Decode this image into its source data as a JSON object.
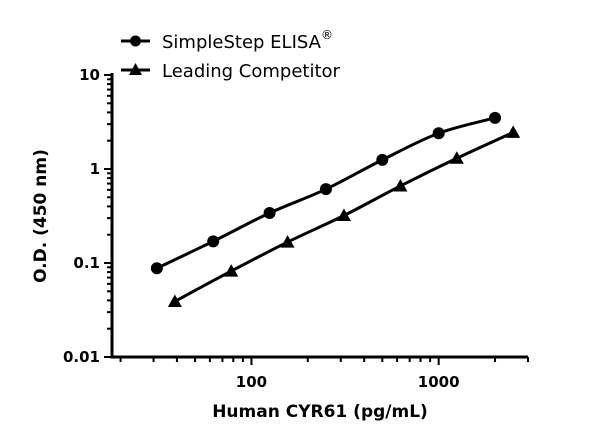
{
  "chart_data": {
    "type": "line",
    "xlabel": "Human CYR61 (pg/mL)",
    "ylabel": "O.D. (450 nm)",
    "xscale": "log",
    "yscale": "log",
    "xlim": [
      18,
      3000
    ],
    "ylim": [
      0.01,
      10
    ],
    "x_ticks": [
      {
        "v": 100,
        "label": "100"
      },
      {
        "v": 1000,
        "label": "1000"
      }
    ],
    "y_ticks": [
      {
        "v": 0.01,
        "label": "0.01"
      },
      {
        "v": 0.1,
        "label": "0.1"
      },
      {
        "v": 1,
        "label": "1"
      },
      {
        "v": 10,
        "label": "10"
      }
    ],
    "grid": false,
    "legend_position": "top-left",
    "series": [
      {
        "name": "SimpleStep ELISA",
        "name_superscript": "®",
        "marker": "circle",
        "color": "#000000",
        "x": [
          31.25,
          62.5,
          125,
          250,
          500,
          1000,
          2000
        ],
        "y": [
          0.088,
          0.17,
          0.34,
          0.61,
          1.25,
          2.4,
          3.5
        ]
      },
      {
        "name": "Leading Competitor",
        "marker": "triangle",
        "color": "#000000",
        "x": [
          39,
          78,
          156,
          312,
          625,
          1250,
          2500
        ],
        "y": [
          0.039,
          0.082,
          0.167,
          0.32,
          0.66,
          1.3,
          2.45
        ]
      }
    ]
  }
}
